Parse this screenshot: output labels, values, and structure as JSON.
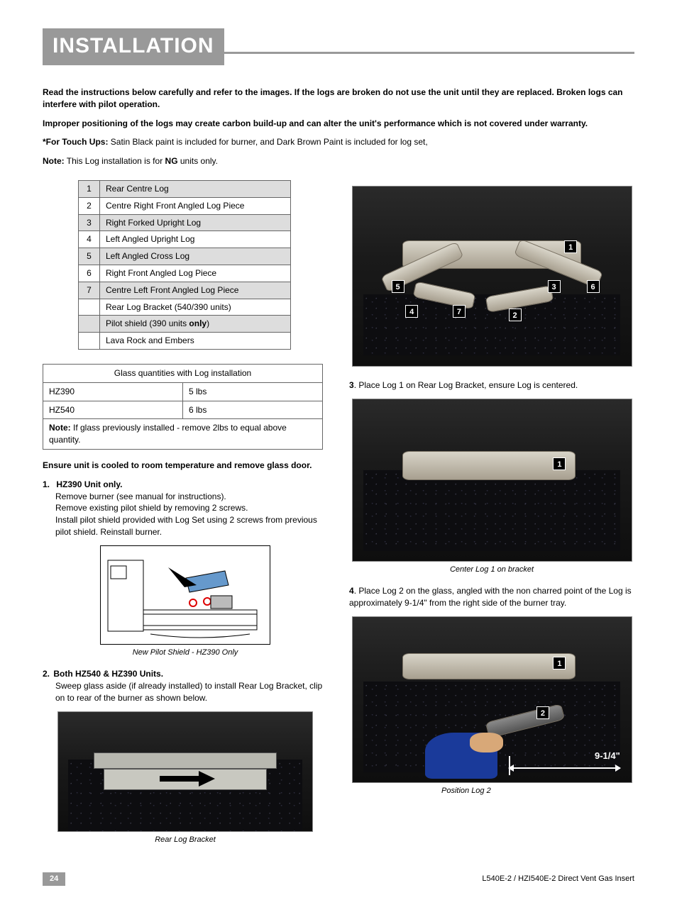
{
  "page": {
    "title": "INSTALLATION",
    "number": "24",
    "footer": "L540E-2 / HZI540E-2 Direct Vent Gas Insert"
  },
  "intro": {
    "p1": "Read the instructions below carefully and refer to the images. If the logs are broken do not use the unit until they are replaced. Broken logs can interfere with pilot operation.",
    "p2": "Improper positioning of the logs may create carbon build-up and can alter the unit's performance which is not covered under warranty.",
    "touchup_label": "*For Touch Ups:",
    "touchup_text": " Satin Black paint is included for burner, and Dark Brown Paint is included for log set,",
    "note_label": "Note:",
    "note_text_a": " This Log installation is for ",
    "note_bold": "NG",
    "note_text_b": " units only."
  },
  "log_table": {
    "rows": [
      {
        "n": "1",
        "name": "Rear Centre Log",
        "shade": true
      },
      {
        "n": "2",
        "name": "Centre Right Front Angled Log Piece",
        "shade": false
      },
      {
        "n": "3",
        "name": "Right Forked Upright Log",
        "shade": true
      },
      {
        "n": "4",
        "name": "Left Angled Upright Log",
        "shade": false
      },
      {
        "n": "5",
        "name": "Left Angled Cross Log",
        "shade": true
      },
      {
        "n": "6",
        "name": "Right Front Angled Log Piece",
        "shade": false
      },
      {
        "n": "7",
        "name": "Centre Left Front Angled Log Piece",
        "shade": true
      },
      {
        "n": "",
        "name": "Rear Log Bracket (540/390 units)",
        "shade": false
      },
      {
        "n": "",
        "name_pre": "Pilot shield (390 units ",
        "name_bold": "only",
        "name_post": ")",
        "shade": true
      },
      {
        "n": "",
        "name": "Lava Rock and Embers",
        "shade": false
      }
    ]
  },
  "glass_table": {
    "header": "Glass quantities with Log installation",
    "rows": [
      {
        "model": "HZ390",
        "qty": "5 lbs"
      },
      {
        "model": "HZ540",
        "qty": "6 lbs"
      }
    ],
    "note_label": "Note:",
    "note_text": " If glass previously installed - remove 2lbs to equal above quantity."
  },
  "left": {
    "ensure": "Ensure unit is cooled to room temperature and remove glass door.",
    "step1_num": "1.",
    "step1_title": "HZ390 Unit only.",
    "step1_body": "Remove burner (see manual for instructions).\nRemove existing pilot shield by removing 2 screws.\nInstall pilot shield provided with Log Set using 2 screws from previous pilot shield. Reinstall burner.",
    "fig1_caption": "New Pilot Shield - HZ390 Only",
    "step2_num": "2.",
    "step2_title": "Both HZ540 & HZ390 Units.",
    "step2_body": "Sweep glass aside (if already installed) to install Rear Log Bracket, clip on to rear of the burner as shown below.",
    "fig2_caption": "Rear Log Bracket"
  },
  "right": {
    "overview_badges": [
      "1",
      "5",
      "3",
      "6",
      "4",
      "7",
      "2"
    ],
    "step3_num": "3",
    "step3_text": ". Place Log 1 on Rear Log Bracket, ensure Log is centered.",
    "fig3_badges": [
      "1"
    ],
    "fig3_caption": "Center Log 1 on bracket",
    "step4_num": "4",
    "step4_text": ". Place Log 2 on the glass, angled with the non charred point of the Log is approximately 9-1/4\" from the right side of the burner tray.",
    "fig4_badges": [
      "1",
      "2"
    ],
    "fig4_dim": "9-1/4\"",
    "fig4_caption": "Position Log 2"
  },
  "style": {
    "header_bg": "#999999",
    "header_fg": "#ffffff",
    "table_border": "#666666",
    "shade_bg": "#dddddd",
    "body_font_size_pt": 9,
    "title_font_size_pt": 22
  }
}
